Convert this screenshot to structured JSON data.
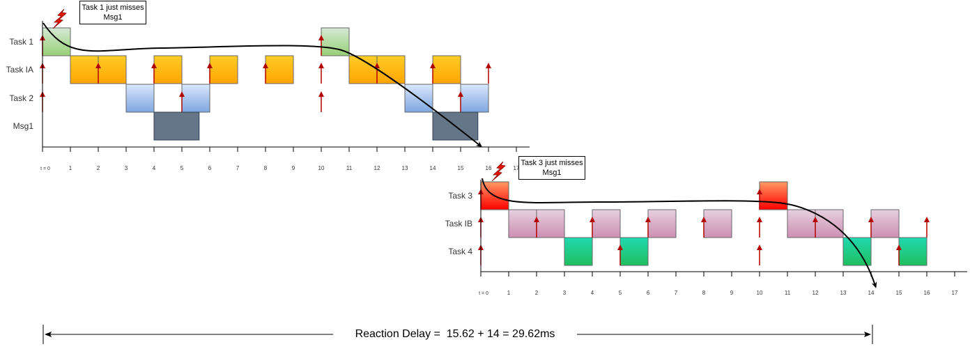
{
  "colors": {
    "task1": [
      "#d5e8d4",
      "#97d077"
    ],
    "taskIA": [
      "#ffcd28",
      "#ffa500"
    ],
    "task2": [
      "#dae8fc",
      "#7ea6e0"
    ],
    "msg1": [
      "#647687",
      "#647687"
    ],
    "task3": [
      "#ff9966",
      "#ff0000"
    ],
    "taskIB": [
      "#e6d0de",
      "#cd8fb3"
    ],
    "task4": [
      "#20d7b0",
      "#20c060"
    ],
    "arrow": "#b20000",
    "box_stroke": "#666666"
  },
  "top_diagram": {
    "rows": [
      {
        "key": "task1",
        "label": "Task 1",
        "color_key": "task1",
        "boxes": [
          [
            0,
            1
          ],
          [
            10,
            11
          ]
        ],
        "arrows": [
          0,
          10
        ]
      },
      {
        "key": "taskIA",
        "label": "Task IA",
        "color_key": "taskIA",
        "boxes": [
          [
            1,
            2
          ],
          [
            2,
            3
          ],
          [
            4,
            5
          ],
          [
            6,
            7
          ],
          [
            8,
            9
          ],
          [
            11,
            12
          ],
          [
            12,
            13
          ],
          [
            14,
            15
          ]
        ],
        "arrows": [
          0,
          2,
          4,
          6,
          8,
          10,
          12,
          14,
          16
        ]
      },
      {
        "key": "task2",
        "label": "Task 2",
        "color_key": "task2",
        "boxes": [
          [
            3,
            4
          ],
          [
            5,
            6
          ],
          [
            13,
            14
          ],
          [
            15,
            16
          ]
        ],
        "arrows": [
          0,
          5,
          10,
          15
        ]
      },
      {
        "key": "msg1",
        "label": "Msg1",
        "color_key": "msg1",
        "boxes": [
          [
            4,
            5.62
          ],
          [
            14,
            15.62
          ]
        ],
        "arrows": []
      }
    ],
    "ticks": [
      "t = 0",
      "1",
      "2",
      "3",
      "4",
      "5",
      "6",
      "7",
      "8",
      "9",
      "10",
      "11",
      "12",
      "13",
      "14",
      "15",
      "16",
      "17"
    ],
    "callout": "Task 1 just misses Msg1"
  },
  "bottom_diagram": {
    "rows": [
      {
        "key": "task3",
        "label": "Task 3",
        "color_key": "task3",
        "boxes": [
          [
            0,
            1
          ],
          [
            10,
            11
          ]
        ],
        "arrows": [
          0,
          10
        ]
      },
      {
        "key": "taskIB",
        "label": "Task IB",
        "color_key": "taskIB",
        "boxes": [
          [
            1,
            2
          ],
          [
            2,
            3
          ],
          [
            4,
            5
          ],
          [
            6,
            7
          ],
          [
            8,
            9
          ],
          [
            11,
            12
          ],
          [
            12,
            13
          ],
          [
            14,
            15
          ]
        ],
        "arrows": [
          0,
          2,
          4,
          6,
          8,
          10,
          12,
          14,
          16
        ]
      },
      {
        "key": "task4",
        "label": "Task 4",
        "color_key": "task4",
        "boxes": [
          [
            3,
            4
          ],
          [
            5,
            6
          ],
          [
            13,
            14
          ],
          [
            15,
            16
          ]
        ],
        "arrows": [
          0,
          5,
          10,
          15
        ]
      }
    ],
    "ticks": [
      "t = 0",
      "1",
      "2",
      "3",
      "4",
      "5",
      "6",
      "7",
      "8",
      "9",
      "10",
      "11",
      "12",
      "13",
      "14",
      "15",
      "16",
      "17"
    ],
    "callout": "Task 3 just misses Msg1"
  },
  "footer": {
    "reaction_delay": "Reaction Delay =  15.62 + 14 = 29.62ms"
  }
}
